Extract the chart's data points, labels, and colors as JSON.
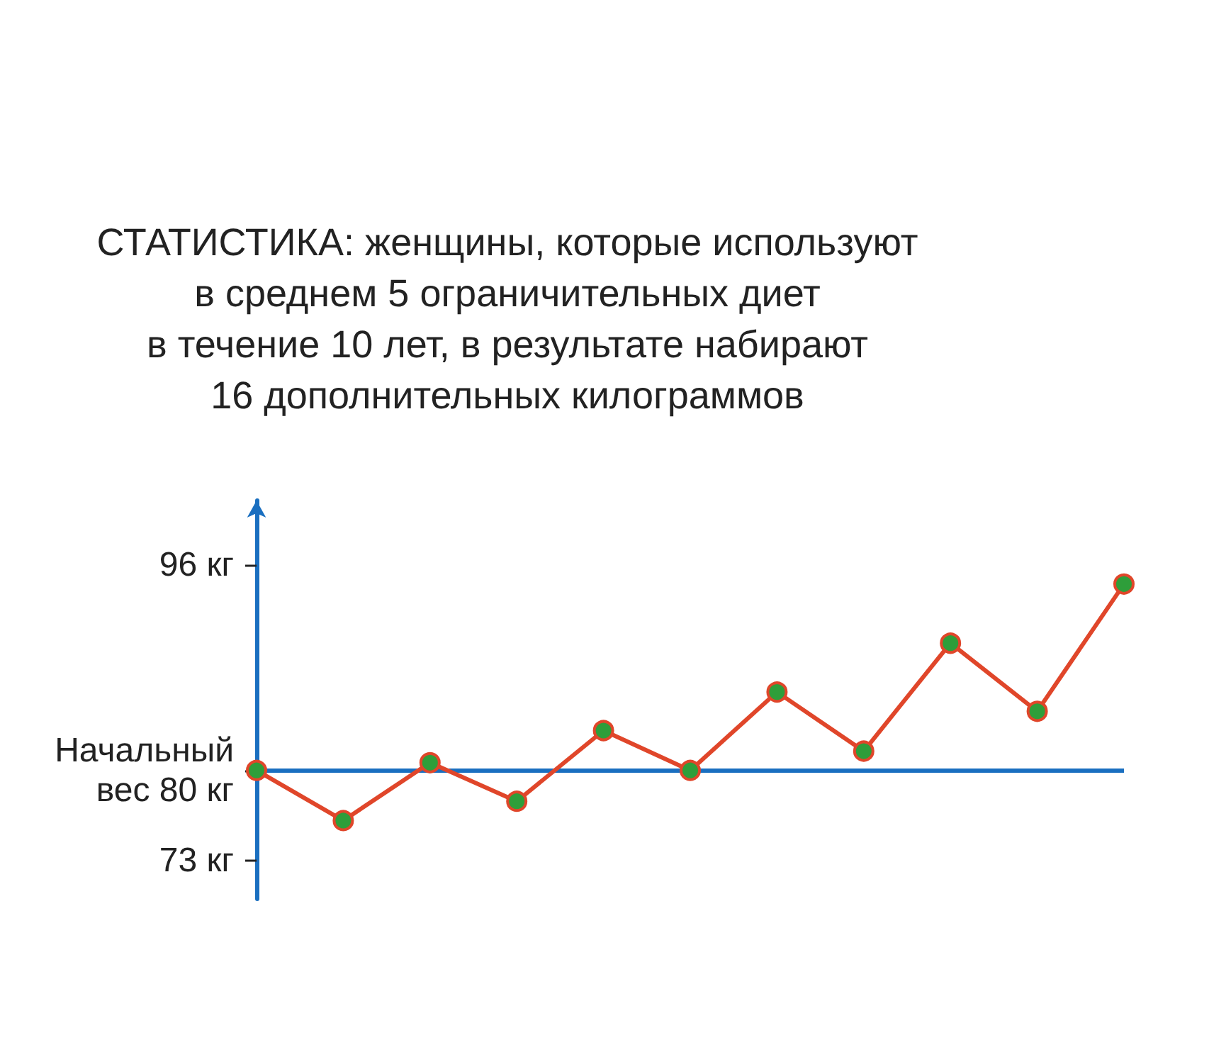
{
  "chart_data": {
    "type": "line",
    "title": "СТАТИСТИКА: женщины, которые используют\nв среднем 5 ограничительных диет\nв течение 10 лет, в результате набирают\n16 дополнительных килограммов",
    "categories": [
      null,
      null,
      null,
      null,
      null,
      null,
      null,
      null,
      null,
      null,
      null
    ],
    "series": [
      {
        "color": "#e0462a",
        "values": [
          80,
          76.1,
          80.6,
          77.6,
          83.1,
          80,
          86.1,
          81.5,
          89.9,
          84.6,
          94.5
        ]
      }
    ],
    "marker": "circle",
    "line_style": "solid",
    "grid": false,
    "tick_labels": "y",
    "ylim": [
      70,
      101
    ],
    "yticks": [
      {
        "value": 96,
        "label": "96 кг"
      },
      {
        "value": 80,
        "label": "Начальный\nвес 80 кг"
      },
      {
        "value": 73,
        "label": "73 кг"
      }
    ],
    "ref_lines": [
      {
        "axis": "y",
        "value": 80,
        "color": "#1a6fc0"
      }
    ]
  }
}
